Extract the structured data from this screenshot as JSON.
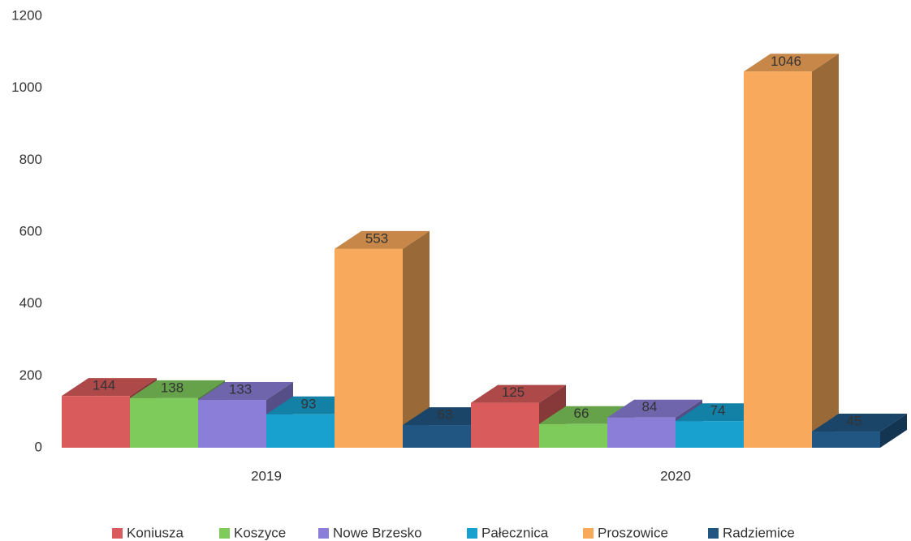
{
  "chart_data": {
    "type": "bar3d",
    "categories": [
      "2019",
      "2020"
    ],
    "series": [
      {
        "name": "Koniusza",
        "color": "#d95b5b",
        "values": [
          144,
          125
        ]
      },
      {
        "name": "Koszyce",
        "color": "#7ecb5c",
        "values": [
          138,
          66
        ]
      },
      {
        "name": "Nowe Brzesko",
        "color": "#8a7ed8",
        "values": [
          133,
          84
        ]
      },
      {
        "name": "Pałecznica",
        "color": "#18a0cf",
        "values": [
          93,
          74
        ]
      },
      {
        "name": "Proszowice",
        "color": "#f8a95b",
        "values": [
          553,
          1046
        ]
      },
      {
        "name": "Radziemice",
        "color": "#215582",
        "values": [
          63,
          45
        ]
      }
    ],
    "ylim": [
      0,
      1200
    ],
    "yticks": [
      0,
      200,
      400,
      600,
      800,
      1000,
      1200
    ],
    "grid": false,
    "legend": "bottom"
  }
}
